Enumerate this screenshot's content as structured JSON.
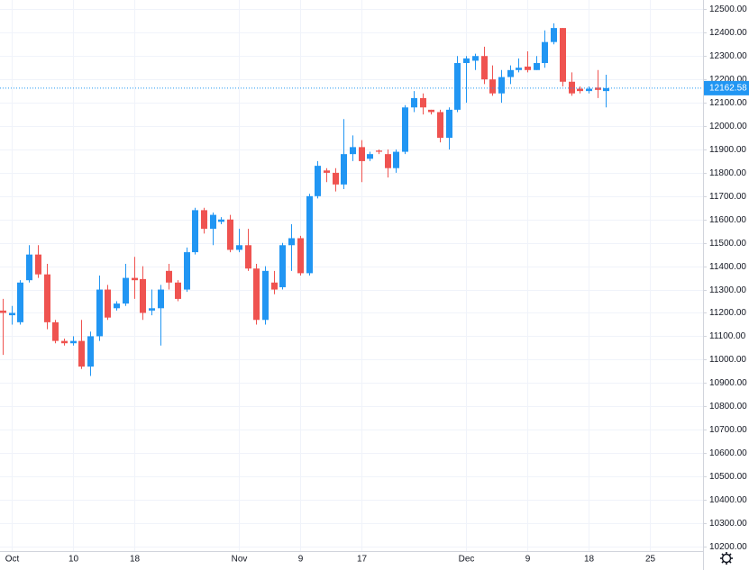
{
  "chart_data": {
    "type": "candlestick",
    "categories": [
      null,
      "Oct",
      null,
      null,
      null,
      null,
      null,
      null,
      "10",
      null,
      null,
      null,
      null,
      null,
      null,
      "18",
      null,
      null,
      null,
      null,
      null,
      null,
      null,
      null,
      null,
      null,
      null,
      "Nov",
      null,
      null,
      null,
      null,
      null,
      null,
      "9",
      null,
      null,
      null,
      null,
      null,
      null,
      "17",
      null,
      null,
      null,
      null,
      null,
      null,
      null,
      null,
      null,
      null,
      null,
      "Dec",
      null,
      null,
      null,
      null,
      null,
      null,
      "9",
      null,
      null,
      null,
      null,
      null,
      null,
      "18",
      null,
      null,
      null,
      null,
      null,
      null,
      "25",
      null,
      null,
      null,
      null,
      null
    ],
    "open": [
      11210,
      11190,
      11160,
      11340,
      11450,
      11365,
      11160,
      11080,
      11070,
      11080,
      10970,
      11100,
      11300,
      11220,
      11240,
      11350,
      11345,
      11210,
      11220,
      11380,
      11330,
      11300,
      11460,
      11640,
      11560,
      11590,
      11600,
      11470,
      11490,
      11390,
      11170,
      11330,
      11310,
      11490,
      11520,
      11370,
      11700,
      11810,
      11800,
      11750,
      11880,
      11910,
      11860,
      11895,
      11880,
      11820,
      11890,
      12080,
      12120,
      12070,
      12060,
      11950,
      12070,
      12270,
      12280,
      12300,
      12200,
      12140,
      12210,
      12240,
      12255,
      12240,
      12270,
      12360,
      12420,
      12190,
      12160,
      12150,
      12165,
      12150,
      null,
      null,
      null,
      null,
      null,
      null,
      null,
      null,
      null,
      null
    ],
    "high": [
      11260,
      11230,
      11340,
      11490,
      11490,
      11410,
      11170,
      11090,
      11100,
      11170,
      11120,
      11360,
      11320,
      11250,
      11410,
      11440,
      11400,
      11300,
      11320,
      11410,
      11340,
      11480,
      11650,
      11650,
      11630,
      11610,
      11620,
      11560,
      11560,
      11410,
      11400,
      11380,
      11500,
      11580,
      11530,
      11710,
      11850,
      11820,
      11820,
      12030,
      11960,
      11940,
      11890,
      11900,
      11900,
      11900,
      12090,
      12150,
      12140,
      12070,
      12070,
      12080,
      12300,
      12300,
      12310,
      12340,
      12260,
      12240,
      12260,
      12290,
      12320,
      12300,
      12410,
      12440,
      12420,
      12230,
      12170,
      12170,
      12240,
      12220,
      null,
      null,
      null,
      null,
      null,
      null,
      null,
      null,
      null,
      null
    ],
    "low": [
      11020,
      11150,
      11150,
      11330,
      11350,
      11130,
      11070,
      11060,
      11060,
      10960,
      10930,
      11080,
      11170,
      11210,
      11230,
      11260,
      11170,
      11190,
      11060,
      11300,
      11250,
      11290,
      11450,
      11540,
      11490,
      11580,
      11460,
      11460,
      11380,
      11150,
      11150,
      11280,
      11300,
      11380,
      11360,
      11360,
      11690,
      11760,
      11720,
      11730,
      11850,
      11760,
      11850,
      11880,
      11780,
      11800,
      11880,
      12060,
      12050,
      12050,
      11930,
      11900,
      12060,
      12100,
      12240,
      12180,
      12130,
      12100,
      12180,
      12230,
      12230,
      12240,
      12250,
      12350,
      12170,
      12130,
      12140,
      12140,
      12120,
      12080,
      null,
      null,
      null,
      null,
      null,
      null,
      null,
      null,
      null,
      null
    ],
    "close": [
      11200,
      11200,
      11330,
      11450,
      11365,
      11160,
      11080,
      11070,
      11080,
      10970,
      11100,
      11300,
      11180,
      11240,
      11350,
      11340,
      11200,
      11220,
      11300,
      11330,
      11260,
      11460,
      11640,
      11560,
      11620,
      11600,
      11470,
      11490,
      11390,
      11170,
      11380,
      11300,
      11490,
      11520,
      11370,
      11700,
      11830,
      11800,
      11750,
      11880,
      11910,
      11850,
      11880,
      11890,
      11820,
      11890,
      12080,
      12120,
      12080,
      12060,
      11950,
      12070,
      12270,
      12290,
      12300,
      12200,
      12140,
      12210,
      12240,
      12250,
      12240,
      12270,
      12360,
      12420,
      12190,
      12140,
      12150,
      12160,
      12155,
      12163,
      null,
      null,
      null,
      null,
      null,
      null,
      null,
      null,
      null,
      null
    ],
    "up_color": "#2196f3",
    "down_color": "#ef5350",
    "last_price": 12162.58,
    "ylim": [
      10180,
      12540
    ],
    "yticks": [
      {
        "value": 10200,
        "label": "10200.00"
      },
      {
        "value": 10300,
        "label": "10300.00"
      },
      {
        "value": 10400,
        "label": "10400.00"
      },
      {
        "value": 10500,
        "label": "10500.00"
      },
      {
        "value": 10600,
        "label": "10600.00"
      },
      {
        "value": 10700,
        "label": "10700.00"
      },
      {
        "value": 10800,
        "label": "10800.00"
      },
      {
        "value": 10900,
        "label": "10900.00"
      },
      {
        "value": 11000,
        "label": "11000.00"
      },
      {
        "value": 11100,
        "label": "11100.00"
      },
      {
        "value": 11200,
        "label": "11200.00"
      },
      {
        "value": 11300,
        "label": "11300.00"
      },
      {
        "value": 11400,
        "label": "11400.00"
      },
      {
        "value": 11500,
        "label": "11500.00"
      },
      {
        "value": 11600,
        "label": "11600.00"
      },
      {
        "value": 11700,
        "label": "11700.00"
      },
      {
        "value": 11800,
        "label": "11800.00"
      },
      {
        "value": 11900,
        "label": "11900.00"
      },
      {
        "value": 12000,
        "label": "12000.00"
      },
      {
        "value": 12100,
        "label": "12100.00"
      },
      {
        "value": 12200,
        "label": "12200.00"
      },
      {
        "value": 12300,
        "label": "12300.00"
      },
      {
        "value": 12400,
        "label": "12400.00"
      },
      {
        "value": 12500,
        "label": "12500.00"
      }
    ],
    "grid": true
  }
}
